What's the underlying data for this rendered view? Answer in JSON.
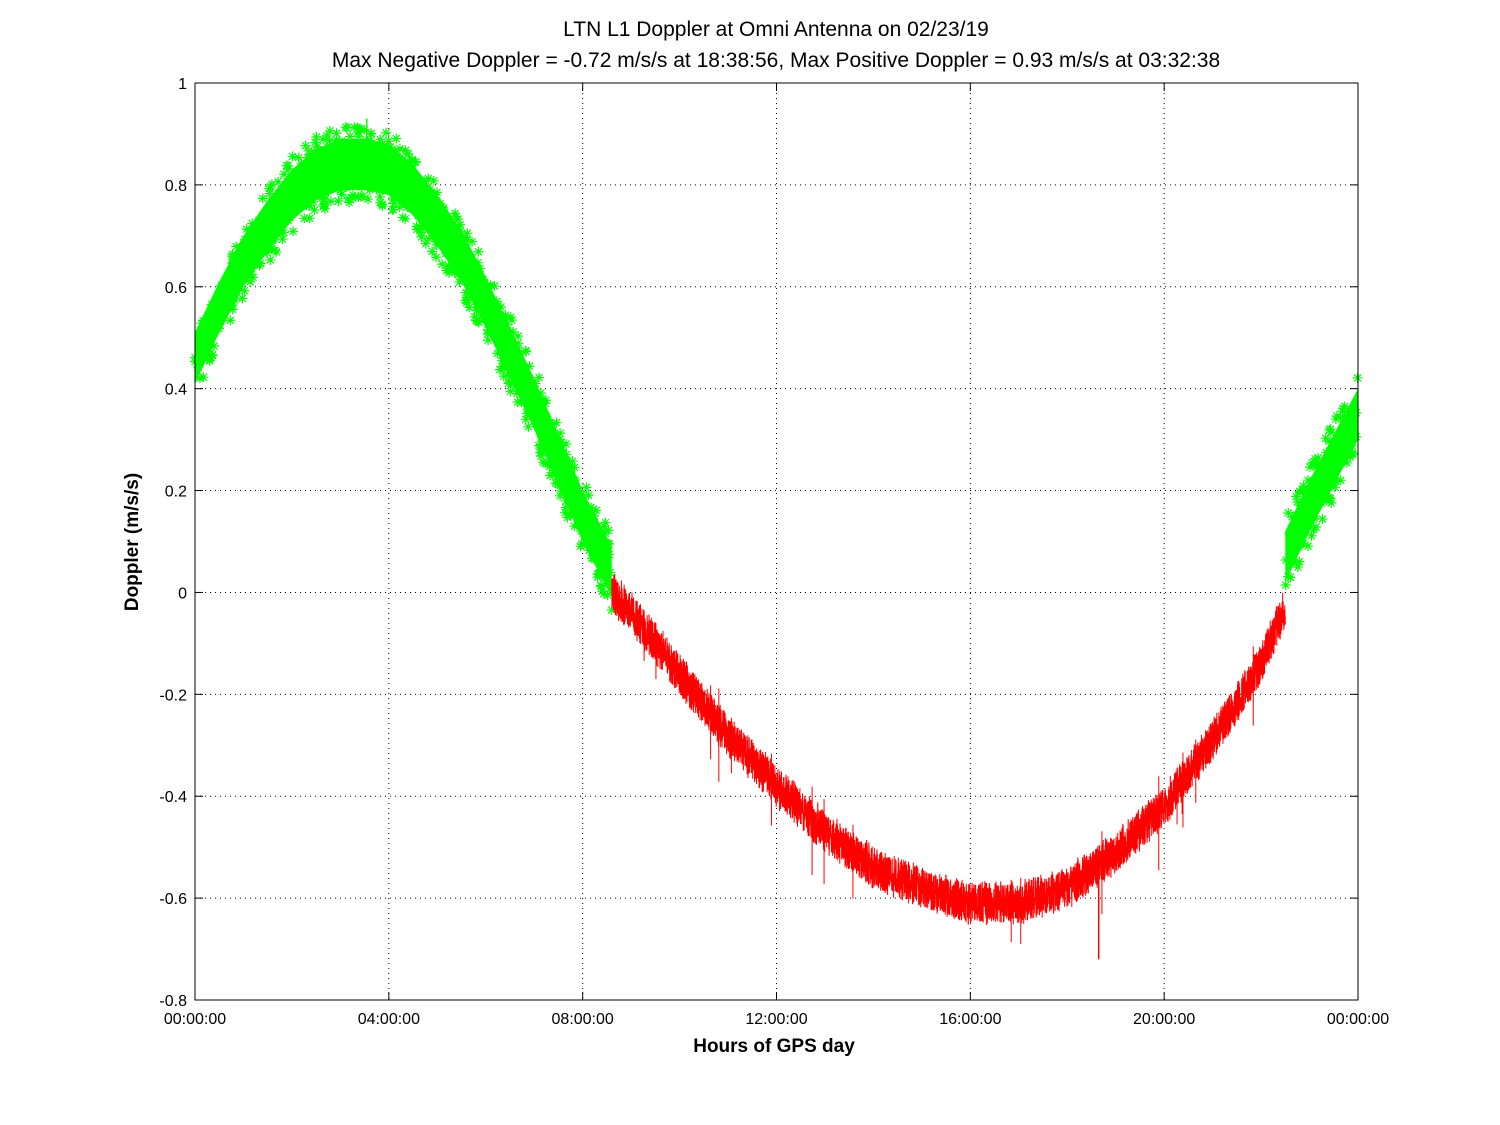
{
  "chart_data": {
    "type": "scatter",
    "title": "LTN  L1 Doppler at Omni Antenna on 02/23/19",
    "subtitle": "Max Negative Doppler = -0.72 m/s/s  at 18:38:56,   Max Positive Doppler = 0.93 m/s/s  at 03:32:38",
    "xlabel": "Hours of GPS day",
    "ylabel": "Doppler (m/s/s)",
    "xlim": [
      0,
      24
    ],
    "ylim": [
      -0.8,
      1
    ],
    "grid": true,
    "x_ticks": [
      {
        "value": 0,
        "label": "00:00:00"
      },
      {
        "value": 4,
        "label": "04:00:00"
      },
      {
        "value": 8,
        "label": "08:00:00"
      },
      {
        "value": 12,
        "label": "12:00:00"
      },
      {
        "value": 16,
        "label": "16:00:00"
      },
      {
        "value": 20,
        "label": "20:00:00"
      },
      {
        "value": 24,
        "label": "00:00:00"
      }
    ],
    "y_ticks": [
      {
        "value": 1,
        "label": "1"
      },
      {
        "value": 0.8,
        "label": "0.8"
      },
      {
        "value": 0.6,
        "label": "0.6"
      },
      {
        "value": 0.4,
        "label": "0.4"
      },
      {
        "value": 0.2,
        "label": "0.2"
      },
      {
        "value": 0,
        "label": "0"
      },
      {
        "value": -0.2,
        "label": "-0.2"
      },
      {
        "value": -0.4,
        "label": "-0.4"
      },
      {
        "value": -0.6,
        "label": "-0.6"
      },
      {
        "value": -0.8,
        "label": "-0.8"
      }
    ],
    "series": [
      {
        "color": "#00ff00",
        "style": "asterisk-markers",
        "segments": [
          {
            "x": [
              0,
              0.5,
              1,
              1.5,
              2,
              2.5,
              3,
              3.5,
              4,
              4.5,
              5,
              5.5,
              6,
              6.5,
              7,
              7.5,
              8,
              8.6
            ],
            "y": [
              0.46,
              0.56,
              0.65,
              0.72,
              0.78,
              0.82,
              0.84,
              0.84,
              0.83,
              0.79,
              0.73,
              0.66,
              0.57,
              0.47,
              0.37,
              0.26,
              0.15,
              0.04
            ]
          },
          {
            "x": [
              22.5,
              23,
              23.5,
              24
            ],
            "y": [
              0.07,
              0.17,
              0.26,
              0.35
            ]
          }
        ]
      },
      {
        "color": "#ff0000",
        "style": "line",
        "segments": [
          {
            "x": [
              8.6,
              9,
              10,
              11,
              12,
              13,
              14,
              15,
              16,
              16.7,
              17,
              18,
              19,
              20,
              21,
              22,
              22.5
            ],
            "y": [
              0.0,
              -0.04,
              -0.16,
              -0.28,
              -0.38,
              -0.47,
              -0.54,
              -0.58,
              -0.61,
              -0.61,
              -0.61,
              -0.58,
              -0.51,
              -0.42,
              -0.29,
              -0.14,
              -0.03
            ]
          }
        ]
      }
    ],
    "annotations": [
      {
        "text": "Max Negative Doppler",
        "x_hours": 18.649,
        "y": -0.72
      },
      {
        "text": "Max Positive Doppler",
        "x_hours": 3.544,
        "y": 0.93
      }
    ]
  }
}
